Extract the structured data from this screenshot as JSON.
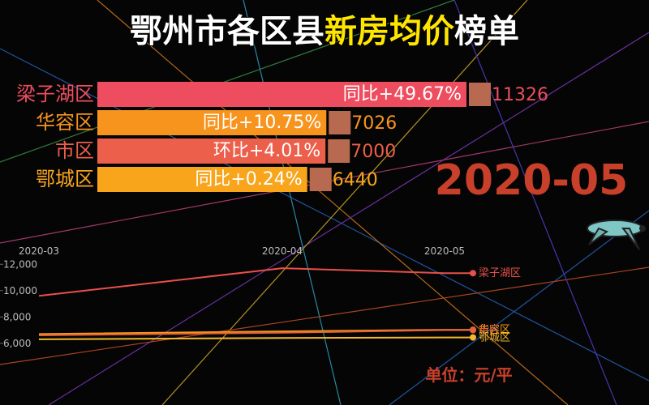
{
  "title_parts": [
    "鄂州市各区县",
    "新房均价",
    "榜单"
  ],
  "unit": "单位：元/平",
  "chart_data": [
    {
      "type": "bar",
      "date": "2020-05",
      "categories": [
        "梁子湖区",
        "华容区",
        "市区",
        "鄂城区"
      ],
      "values": [
        11326,
        7026,
        7000,
        6440
      ],
      "change_labels": [
        "同比+49.67%",
        "同比+10.75%",
        "环比+4.01%",
        "同比+0.24%"
      ],
      "colors": [
        "#ee4d5f",
        "#f7941d",
        "#ec5f4a",
        "#f8a51c"
      ]
    },
    {
      "type": "line",
      "x": [
        "2020-03",
        "2020-04",
        "2020-05"
      ],
      "ylim": [
        5000,
        13000
      ],
      "yticks": [
        {
          "value": 6000,
          "label": "6,000"
        },
        {
          "value": 8000,
          "label": "8,000"
        },
        {
          "value": 10000,
          "label": "10,000"
        },
        {
          "value": 12000,
          "label": "12,000"
        }
      ],
      "series": [
        {
          "name": "梁子湖区",
          "color": "#e8504a",
          "values": [
            9600,
            11700,
            11326
          ]
        },
        {
          "name": "华容区",
          "color": "#f39c12",
          "values": [
            6700,
            6900,
            7026
          ]
        },
        {
          "name": "市区",
          "color": "#e8603c",
          "values": [
            6600,
            6800,
            7000
          ]
        },
        {
          "name": "鄂城区",
          "color": "#f5b82e",
          "values": [
            6300,
            6400,
            6440
          ]
        }
      ]
    }
  ]
}
